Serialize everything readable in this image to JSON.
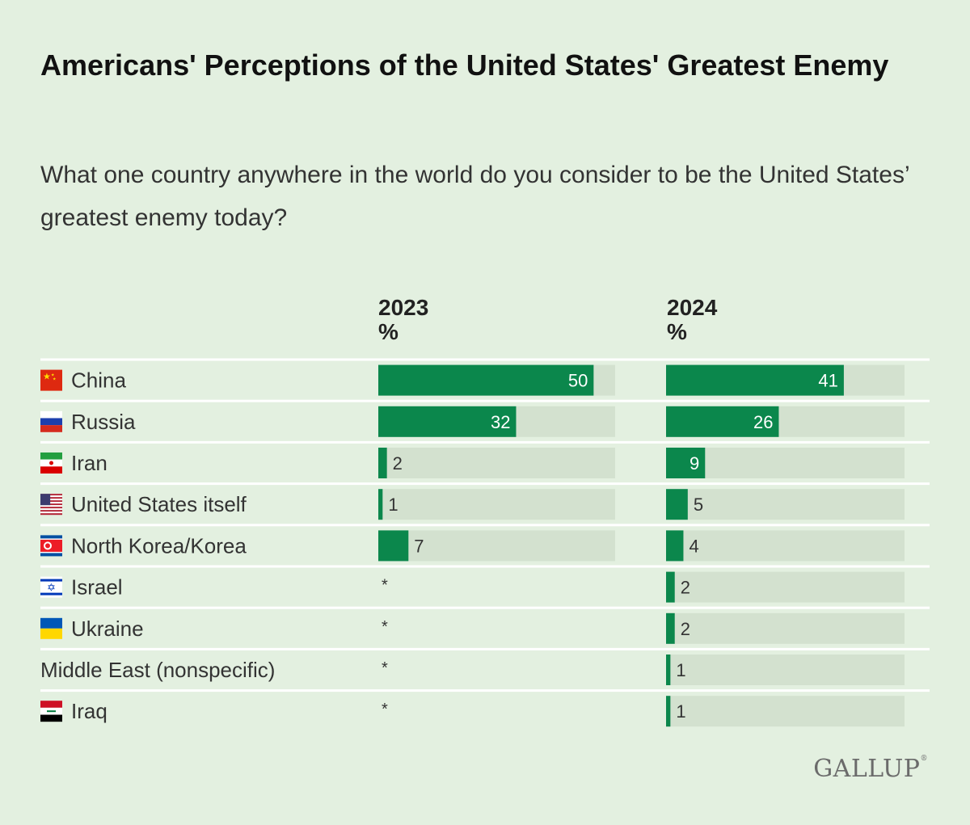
{
  "title": "Americans' Perceptions of the United States' Greatest Enemy",
  "subtitle": "What one country anywhere in the world do you consider to be the United States’ greatest enemy today?",
  "columns": [
    {
      "year": "2023",
      "unit": "%"
    },
    {
      "year": "2024",
      "unit": "%"
    }
  ],
  "logo": "GALLUP",
  "colors": {
    "bar": "#0b874c",
    "track": "#d3e1cf",
    "background": "#e3f0e0",
    "divider": "#ffffff"
  },
  "chart_data": {
    "type": "bar",
    "orientation": "horizontal",
    "categories": [
      "China",
      "Russia",
      "Iran",
      "United States itself",
      "North Korea/Korea",
      "Israel",
      "Ukraine",
      "Middle East (nonspecific)",
      "Iraq"
    ],
    "flags": [
      "china-flag-icon",
      "russia-flag-icon",
      "iran-flag-icon",
      "usa-flag-icon",
      "north-korea-flag-icon",
      "israel-flag-icon",
      "ukraine-flag-icon",
      "",
      "iraq-flag-icon"
    ],
    "series": [
      {
        "name": "2023",
        "values": [
          50,
          32,
          2,
          1,
          7,
          null,
          null,
          null,
          null
        ],
        "labels": [
          "50",
          "32",
          "2",
          "1",
          "7",
          "*",
          "*",
          "*",
          "*"
        ]
      },
      {
        "name": "2024",
        "values": [
          41,
          26,
          9,
          5,
          4,
          2,
          2,
          1,
          1
        ],
        "labels": [
          "41",
          "26",
          "9",
          "5",
          "4",
          "2",
          "2",
          "1",
          "1"
        ]
      }
    ],
    "xlim": [
      0,
      55
    ]
  }
}
